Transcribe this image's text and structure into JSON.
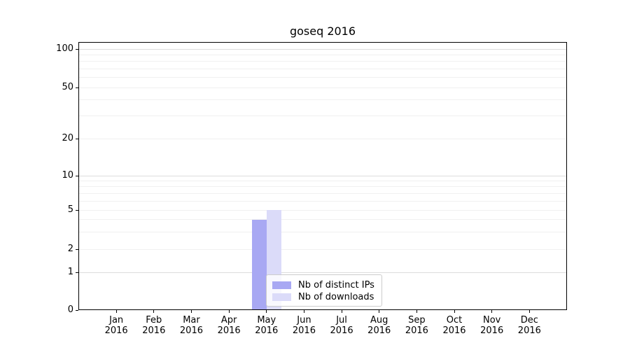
{
  "chart_data": {
    "type": "bar",
    "title": "goseq 2016",
    "year": "2016",
    "months": [
      "Jan",
      "Feb",
      "Mar",
      "Apr",
      "May",
      "Jun",
      "Jul",
      "Aug",
      "Sep",
      "Oct",
      "Nov",
      "Dec"
    ],
    "series": [
      {
        "name": "Nb of distinct IPs",
        "color": "#a8a8f3",
        "values": [
          0,
          0,
          0,
          0,
          4,
          0,
          0,
          0,
          0,
          0,
          0,
          0
        ]
      },
      {
        "name": "Nb of downloads",
        "color": "#dbdbf9",
        "values": [
          0,
          0,
          0,
          0,
          5,
          0,
          0,
          0,
          0,
          0,
          0,
          0
        ]
      }
    ],
    "y_axis": {
      "scale": "symlog",
      "tick_labels": [
        0,
        1,
        2,
        5,
        10,
        20,
        50,
        100
      ],
      "major_gridlines": [
        1,
        10,
        100
      ],
      "minor_gridlines": [
        2,
        3,
        4,
        5,
        6,
        7,
        8,
        9,
        20,
        30,
        40,
        50,
        60,
        70,
        80,
        90
      ],
      "range": [
        0,
        115
      ]
    },
    "legend": {
      "position": "lower center"
    },
    "colors": {
      "grid_minor": "#f0f0f0",
      "grid_major": "#dcdcdc",
      "spine": "#000000",
      "text": "#000000"
    }
  }
}
